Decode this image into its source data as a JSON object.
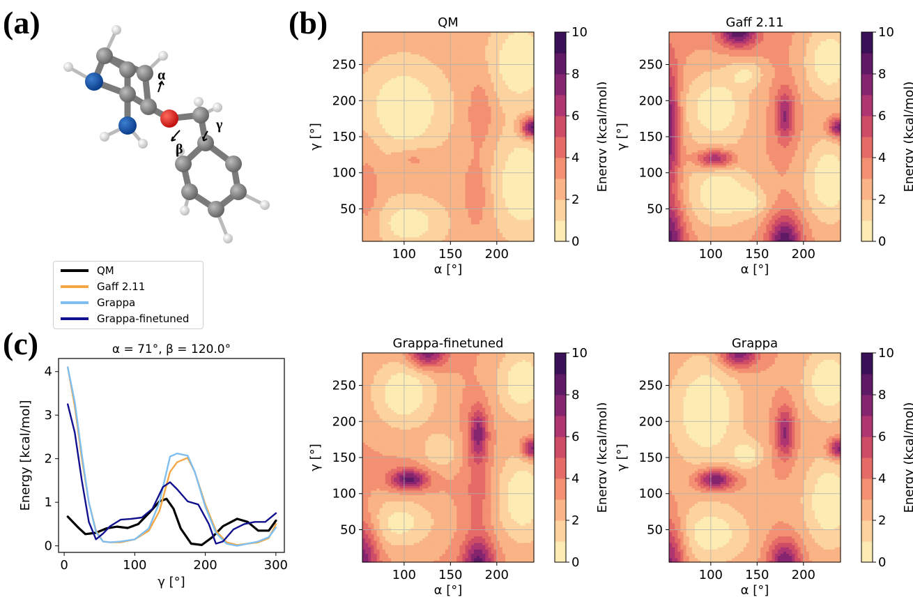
{
  "panel_labels": {
    "a": "(a)",
    "b": "(b)",
    "c": "(c)"
  },
  "molecule": {
    "labels": {
      "alpha": "α",
      "beta": "β",
      "gamma": "γ"
    }
  },
  "legend": [
    {
      "name": "QM",
      "color": "#000000"
    },
    {
      "name": "Gaff 2.11",
      "color": "#f4a744"
    },
    {
      "name": "Grappa",
      "color": "#7fbef0"
    },
    {
      "name": "Grappa-finetuned",
      "color": "#10108e"
    }
  ],
  "chart_data": [
    {
      "id": "qm",
      "type": "heatmap",
      "title": "QM",
      "colormap": "magma_r",
      "xlabel": "α [°]",
      "ylabel": "γ [°]",
      "xlim": [
        55,
        240
      ],
      "ylim": [
        5,
        295
      ],
      "xticks": [
        100,
        150,
        200
      ],
      "yticks": [
        50,
        100,
        150,
        200,
        250
      ],
      "colorbar": {
        "label": "Energy (kcal/mol)",
        "range": [
          0,
          10
        ],
        "ticks": [
          0,
          2,
          4,
          6,
          8,
          10
        ]
      },
      "description_points": [
        {
          "alpha": 100,
          "gamma": 190,
          "energy": 0.5
        },
        {
          "alpha": 225,
          "gamma": 255,
          "energy": 0.3
        },
        {
          "alpha": 225,
          "gamma": 90,
          "energy": 0.3
        },
        {
          "alpha": 100,
          "gamma": 30,
          "energy": 0.8
        },
        {
          "alpha": 110,
          "gamma": 120,
          "energy": 3.5
        },
        {
          "alpha": 180,
          "gamma": 180,
          "energy": 3.8
        },
        {
          "alpha": 235,
          "gamma": 165,
          "energy": 9.5
        }
      ]
    },
    {
      "id": "gaff",
      "type": "heatmap",
      "title": "Gaff 2.11",
      "colormap": "magma_r",
      "xlabel": "α [°]",
      "ylabel": "γ [°]",
      "xlim": [
        55,
        240
      ],
      "ylim": [
        5,
        295
      ],
      "xticks": [
        100,
        150,
        200
      ],
      "yticks": [
        50,
        100,
        150,
        200,
        250
      ],
      "colorbar": {
        "label": "Energy (kcal/mol)",
        "range": [
          0,
          10
        ],
        "ticks": [
          0,
          2,
          4,
          6,
          8,
          10
        ]
      }
    },
    {
      "id": "finetuned",
      "type": "heatmap",
      "title": "Grappa-finetuned",
      "colormap": "magma_r",
      "xlabel": "α [°]",
      "ylabel": "γ [°]",
      "xlim": [
        55,
        240
      ],
      "ylim": [
        5,
        295
      ],
      "xticks": [
        100,
        150,
        200
      ],
      "yticks": [
        50,
        100,
        150,
        200,
        250
      ],
      "colorbar": {
        "label": "Energy (kcal/mol)",
        "range": [
          0,
          10
        ],
        "ticks": [
          0,
          2,
          4,
          6,
          8,
          10
        ]
      }
    },
    {
      "id": "grappa",
      "type": "heatmap",
      "title": "Grappa",
      "colormap": "magma_r",
      "xlabel": "α [°]",
      "ylabel": "γ [°]",
      "xlim": [
        55,
        240
      ],
      "ylim": [
        5,
        295
      ],
      "xticks": [
        100,
        150,
        200
      ],
      "yticks": [
        50,
        100,
        150,
        200,
        250
      ],
      "colorbar": {
        "label": "Energy (kcal/mol)",
        "range": [
          0,
          10
        ],
        "ticks": [
          0,
          2,
          4,
          6,
          8,
          10
        ]
      }
    },
    {
      "id": "line",
      "type": "line",
      "title": "α = 71°, β = 120.0°",
      "xlabel": "γ [°]",
      "ylabel": "Energy [kcal/mol]",
      "xlim": [
        -8,
        312
      ],
      "ylim": [
        -0.15,
        4.3
      ],
      "xticks": [
        0,
        100,
        200,
        300
      ],
      "yticks": [
        0,
        1,
        2,
        3,
        4
      ],
      "series": [
        {
          "name": "QM",
          "color": "#000000",
          "x": [
            5,
            20,
            30,
            45,
            60,
            75,
            90,
            105,
            120,
            135,
            145,
            155,
            165,
            180,
            195,
            210,
            225,
            245,
            260,
            275,
            290,
            300
          ],
          "y": [
            0.67,
            0.42,
            0.27,
            0.3,
            0.4,
            0.44,
            0.41,
            0.5,
            0.75,
            1.02,
            1.08,
            0.85,
            0.4,
            0.05,
            0.02,
            0.2,
            0.45,
            0.62,
            0.55,
            0.35,
            0.35,
            0.58
          ]
        },
        {
          "name": "Gaff 2.11",
          "color": "#f4a744",
          "x": [
            5,
            15,
            25,
            35,
            45,
            55,
            65,
            80,
            100,
            120,
            135,
            150,
            160,
            175,
            185,
            200,
            215,
            230,
            245,
            260,
            275,
            290,
            300
          ],
          "y": [
            4.1,
            3.2,
            2.0,
            1.0,
            0.35,
            0.1,
            0.08,
            0.08,
            0.15,
            0.35,
            0.8,
            1.7,
            1.92,
            2.02,
            1.7,
            0.95,
            0.35,
            0.08,
            0.02,
            0.05,
            0.08,
            0.18,
            0.5
          ]
        },
        {
          "name": "Grappa",
          "color": "#7fbef0",
          "x": [
            5,
            15,
            25,
            35,
            45,
            55,
            65,
            80,
            100,
            120,
            135,
            150,
            160,
            175,
            185,
            200,
            215,
            230,
            245,
            260,
            275,
            290,
            300
          ],
          "y": [
            4.1,
            3.3,
            2.1,
            1.0,
            0.32,
            0.1,
            0.08,
            0.1,
            0.15,
            0.4,
            1.0,
            2.05,
            2.12,
            2.07,
            1.7,
            0.9,
            0.3,
            0.05,
            0.0,
            0.05,
            0.1,
            0.2,
            0.42
          ]
        },
        {
          "name": "Grappa-finetuned",
          "color": "#10108e",
          "x": [
            5,
            15,
            25,
            35,
            45,
            55,
            65,
            80,
            95,
            110,
            125,
            140,
            150,
            160,
            175,
            190,
            205,
            215,
            225,
            240,
            255,
            270,
            285,
            300
          ],
          "y": [
            3.25,
            2.6,
            1.5,
            0.55,
            0.15,
            0.28,
            0.45,
            0.6,
            0.62,
            0.65,
            0.85,
            1.35,
            1.46,
            1.3,
            1.02,
            0.95,
            0.5,
            0.05,
            0.1,
            0.38,
            0.5,
            0.55,
            0.55,
            0.75
          ]
        }
      ]
    }
  ]
}
